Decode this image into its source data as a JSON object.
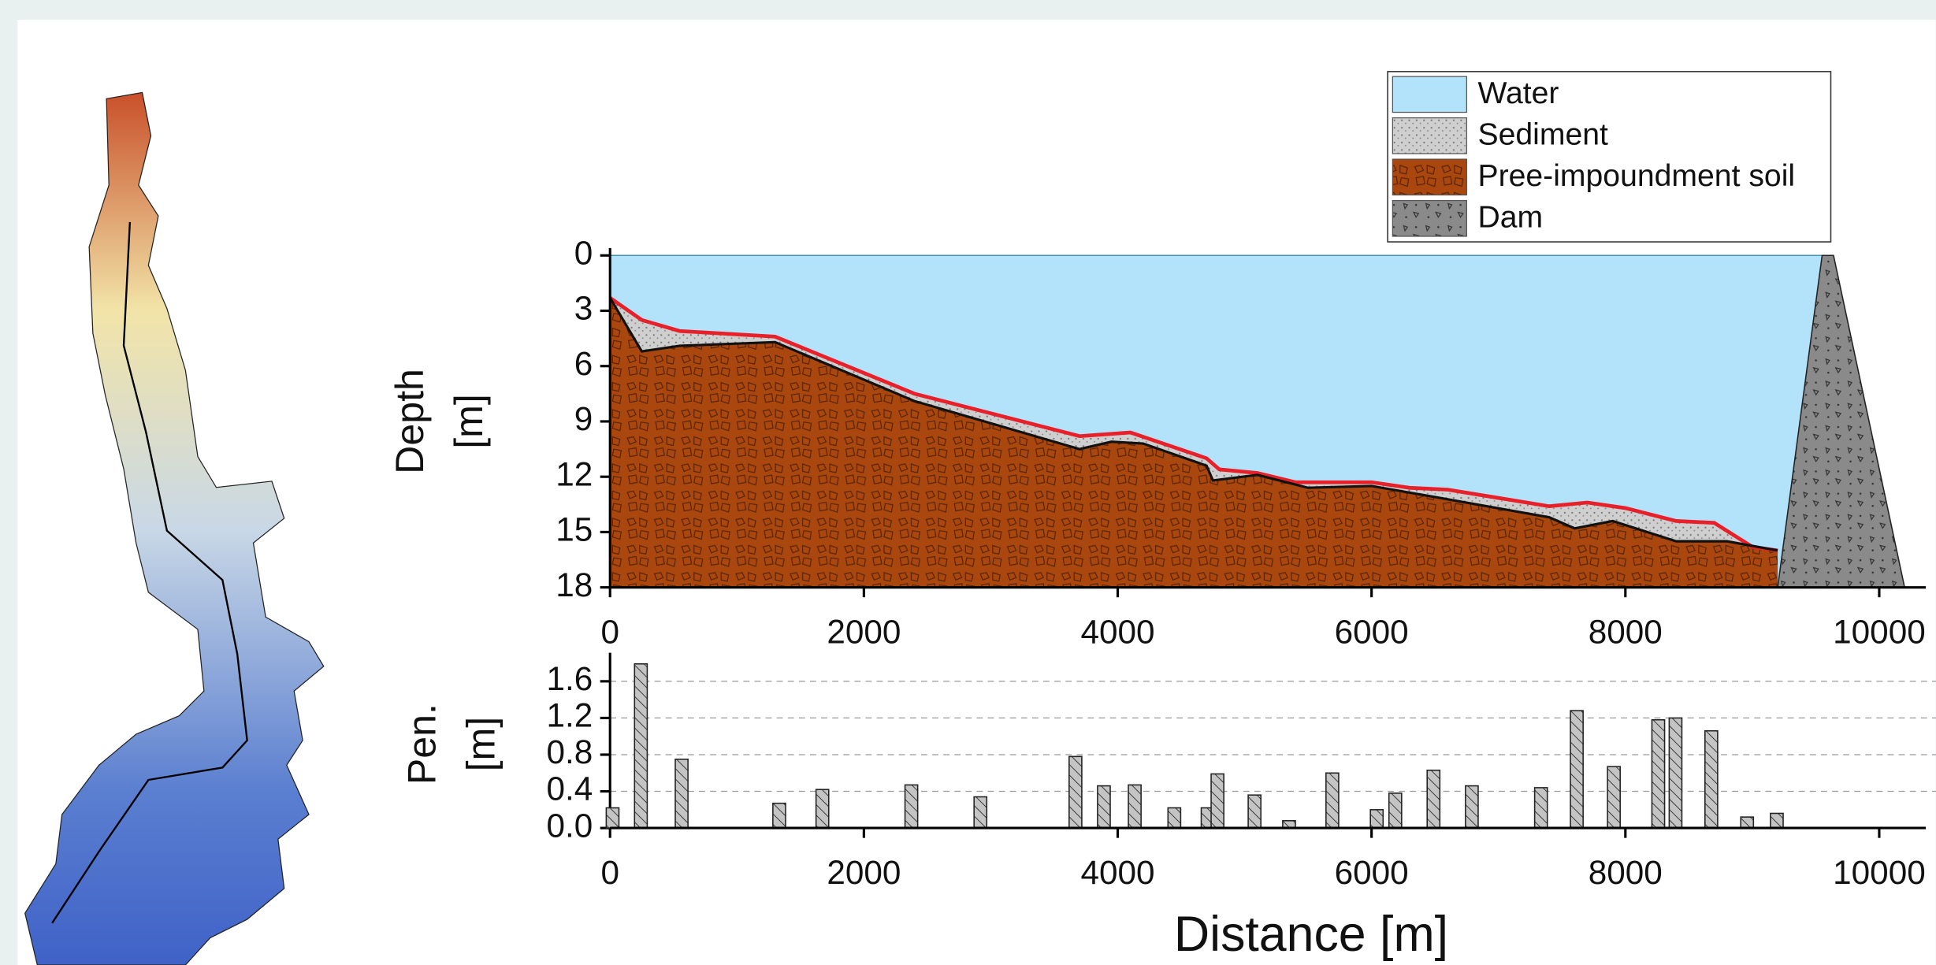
{
  "chart_data": [
    {
      "type": "profile",
      "y_label": [
        "Depth",
        "[m]"
      ],
      "xlim": [
        0,
        10270
      ],
      "xticks": [
        0,
        2000,
        4000,
        6000,
        8000,
        10000
      ],
      "ylim": [
        0,
        18
      ],
      "yticks": [
        0,
        3,
        6,
        9,
        12,
        15,
        18
      ],
      "y_inverted": true,
      "legend": "upper right",
      "series": [
        {
          "name": "Water",
          "color": "#b3e3fa",
          "line_color": "#4a8fb8",
          "x": [
            0,
            9550
          ],
          "values": [
            0,
            0
          ]
        },
        {
          "name": "Sediment",
          "color": "#c9c9c9",
          "line_color": "#e8202a",
          "x": [
            0,
            250,
            550,
            1300,
            2400,
            3700,
            4100,
            4700,
            4800,
            5100,
            5400,
            6000,
            6300,
            6600,
            7400,
            7700,
            8000,
            8400,
            8700,
            9000,
            9200
          ],
          "values": [
            2.3,
            3.5,
            4.1,
            4.4,
            7.5,
            9.8,
            9.6,
            11.0,
            11.6,
            11.8,
            12.3,
            12.3,
            12.6,
            12.7,
            13.6,
            13.4,
            13.7,
            14.4,
            14.5,
            15.8,
            16.0
          ]
        },
        {
          "name": "Pree-impoundment soil",
          "color": "#a9470f",
          "line_color": "#111111",
          "x": [
            0,
            250,
            550,
            1300,
            2400,
            3700,
            3950,
            4200,
            4700,
            4750,
            5100,
            5500,
            6000,
            6500,
            7400,
            7600,
            7900,
            8400,
            8800,
            9200
          ],
          "values": [
            2.3,
            5.2,
            4.9,
            4.7,
            7.9,
            10.5,
            10.1,
            10.2,
            11.4,
            12.2,
            11.9,
            12.6,
            12.5,
            13.1,
            14.2,
            14.8,
            14.4,
            15.5,
            15.5,
            16.0
          ]
        },
        {
          "name": "Dam",
          "color": "#8a8a8a",
          "line_color": "#222222",
          "x": [
            9200,
            9550,
            9640,
            10200
          ],
          "values": [
            18,
            0,
            0,
            18
          ]
        }
      ]
    },
    {
      "type": "bar",
      "y_label": [
        "Pen.",
        "[m]"
      ],
      "x_label": "Distance [m]",
      "xlim": [
        0,
        10270
      ],
      "xticks": [
        0,
        2000,
        4000,
        6000,
        8000,
        10000
      ],
      "ylim": [
        0,
        1.83
      ],
      "yticks": [
        {
          "value": 0,
          "label": "0.0"
        },
        0.4,
        0.8,
        1.2,
        1.6
      ],
      "grid": true,
      "color": "#c4c4c4",
      "bar_width": 100,
      "x": [
        20,
        243,
        564,
        1333,
        1673,
        2374,
        2918,
        3667,
        3891,
        4134,
        4446,
        4708,
        4786,
        5078,
        5350,
        5691,
        6041,
        6187,
        6488,
        6790,
        7335,
        7617,
        7909,
        8259,
        8395,
        8677,
        8959,
        9193
      ],
      "values": [
        0.22,
        1.79,
        0.75,
        0.27,
        0.42,
        0.47,
        0.34,
        0.78,
        0.46,
        0.47,
        0.22,
        0.22,
        0.59,
        0.36,
        0.08,
        0.6,
        0.2,
        0.38,
        0.63,
        0.46,
        0.44,
        1.28,
        0.67,
        1.18,
        1.2,
        1.06,
        0.12,
        0.16
      ]
    }
  ]
}
